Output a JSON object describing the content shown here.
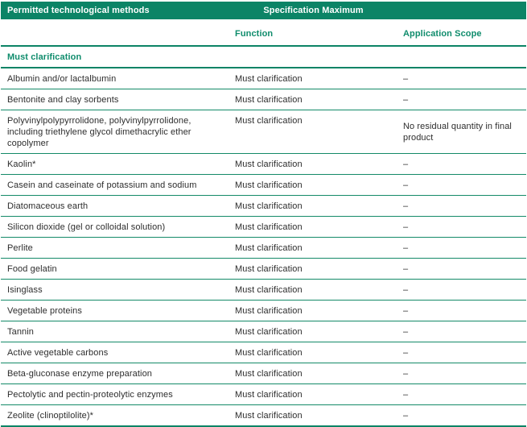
{
  "theme": {
    "green_band": "#0C8466",
    "green_text": "#0F8C6C",
    "line": "#148A68",
    "ink": "#2D2D2D"
  },
  "table": {
    "header": {
      "methods": "Permitted technological methods",
      "spec_max": "Specification Maximum"
    },
    "subheader": {
      "function": "Function",
      "scope": "Application Scope"
    },
    "section": "Must clarification",
    "rows": [
      {
        "method": "Albumin and/or lactalbumin",
        "function": "Must clarification",
        "scope": "–"
      },
      {
        "method": "Bentonite and clay sorbents",
        "function": "Must clarification",
        "scope": "–"
      },
      {
        "method": "Polyvinylpolypyrrolidone, polyvinylpyrrolidone, including triethylene glycol dimethacrylic ether copolymer",
        "function": "Must clarification",
        "scope": "No residual quantity in final product"
      },
      {
        "method": "Kaolin*",
        "function": "Must clarification",
        "scope": "–"
      },
      {
        "method": "Casein and caseinate of potassium and sodium",
        "function": "Must clarification",
        "scope": "–"
      },
      {
        "method": "Diatomaceous earth",
        "function": "Must clarification",
        "scope": "–"
      },
      {
        "method": "Silicon dioxide (gel or colloidal solution)",
        "function": "Must clarification",
        "scope": "–"
      },
      {
        "method": "Perlite",
        "function": "Must clarification",
        "scope": "–"
      },
      {
        "method": "Food gelatin",
        "function": "Must clarification",
        "scope": "–"
      },
      {
        "method": "Isinglass",
        "function": "Must clarification",
        "scope": "–"
      },
      {
        "method": "Vegetable proteins",
        "function": "Must clarification",
        "scope": "–"
      },
      {
        "method": "Tannin",
        "function": "Must clarification",
        "scope": "–"
      },
      {
        "method": "Active vegetable carbons",
        "function": "Must clarification",
        "scope": "–"
      },
      {
        "method": "Beta-gluconase enzyme preparation",
        "function": "Must clarification",
        "scope": "–"
      },
      {
        "method": "Pectolytic and pectin-proteolytic enzymes",
        "function": "Must clarification",
        "scope": "–"
      },
      {
        "method": "Zeolite (clinoptilolite)*",
        "function": "Must clarification",
        "scope": "–"
      }
    ]
  }
}
